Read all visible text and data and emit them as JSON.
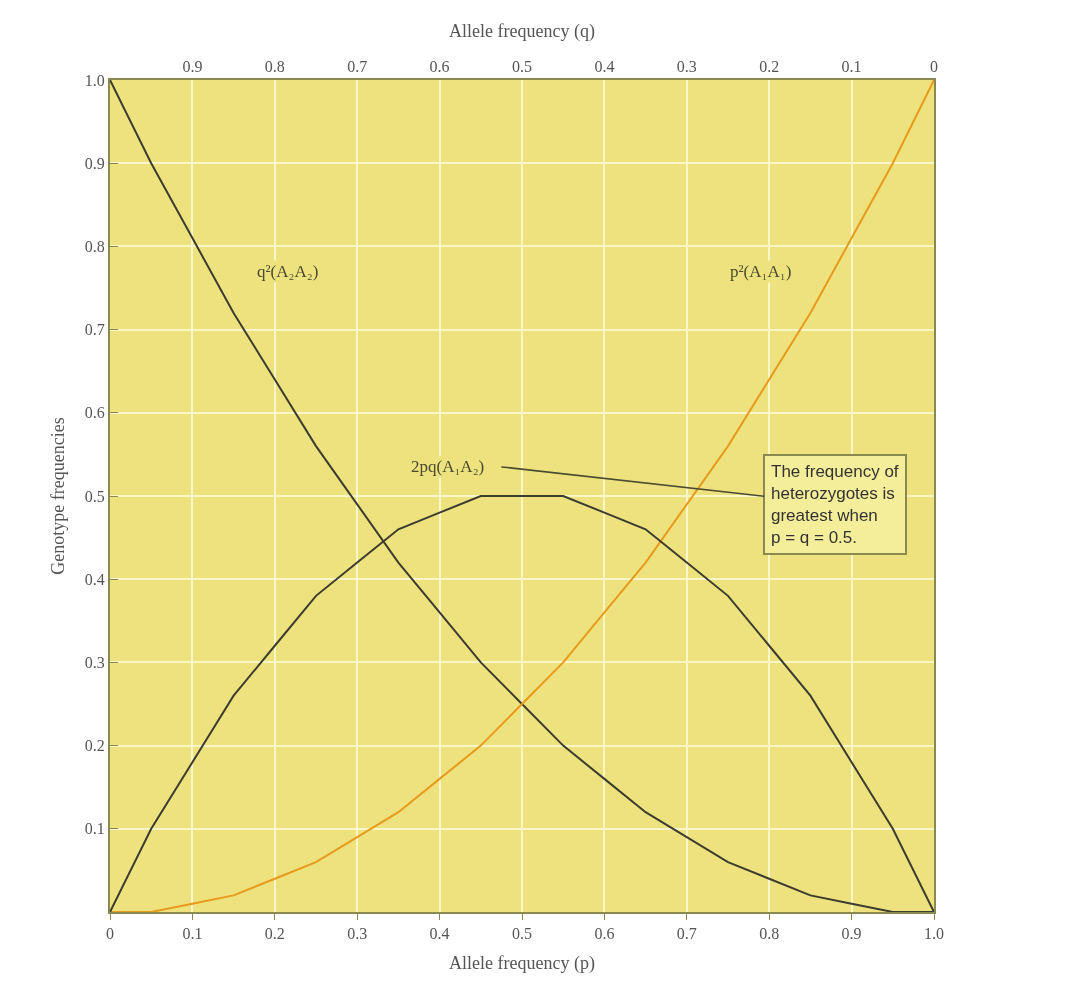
{
  "chart_data": {
    "type": "line",
    "xlabel": "Allele frequency (p)",
    "x2label": "Allele frequency (q)",
    "ylabel": "Genotype frequencies",
    "x": [
      0,
      0.05,
      0.1,
      0.15,
      0.2,
      0.25,
      0.3,
      0.35,
      0.4,
      0.45,
      0.5,
      0.55,
      0.6,
      0.65,
      0.7,
      0.75,
      0.8,
      0.85,
      0.9,
      0.95,
      1.0
    ],
    "series": [
      {
        "name": "q²(A₂A₂)",
        "color": "#3c3c30",
        "values": [
          1.0,
          0.9,
          0.81,
          0.72,
          0.64,
          0.56,
          0.49,
          0.42,
          0.36,
          0.3,
          0.25,
          0.2,
          0.16,
          0.12,
          0.09,
          0.06,
          0.04,
          0.02,
          0.01,
          0.0,
          0.0
        ]
      },
      {
        "name": "p²(A₁A₁)",
        "color": "#e89a1c",
        "values": [
          0.0,
          0.0,
          0.01,
          0.02,
          0.04,
          0.06,
          0.09,
          0.12,
          0.16,
          0.2,
          0.25,
          0.3,
          0.36,
          0.42,
          0.49,
          0.56,
          0.64,
          0.72,
          0.81,
          0.9,
          1.0
        ]
      },
      {
        "name": "2pq(A₁A₂)",
        "color": "#3c3c30",
        "values": [
          0.0,
          0.1,
          0.18,
          0.26,
          0.32,
          0.38,
          0.42,
          0.46,
          0.48,
          0.5,
          0.5,
          0.5,
          0.48,
          0.46,
          0.42,
          0.38,
          0.32,
          0.26,
          0.18,
          0.1,
          0.0
        ]
      }
    ],
    "xlim": [
      0,
      1.0
    ],
    "xticks": [
      0,
      0.1,
      0.2,
      0.3,
      0.4,
      0.5,
      0.6,
      0.7,
      0.8,
      0.9,
      {
        "value": 1.0,
        "label": "1.0"
      }
    ],
    "x2lim": [
      1.0,
      0
    ],
    "x2ticks": [
      0.9,
      0.8,
      0.7,
      0.6,
      0.5,
      0.4,
      0.3,
      0.2,
      0.1,
      0
    ],
    "ylim": [
      0,
      1.0
    ],
    "yticks": [
      0.1,
      0.2,
      0.3,
      0.4,
      0.5,
      0.6,
      0.7,
      0.8,
      0.9,
      {
        "value": 1.0,
        "label": "1.0"
      }
    ],
    "grid": true,
    "marker": "none",
    "line_style": "solid",
    "annotations": [
      "The frequency of heterozygotes is greatest when p = q = 0.5."
    ]
  }
}
